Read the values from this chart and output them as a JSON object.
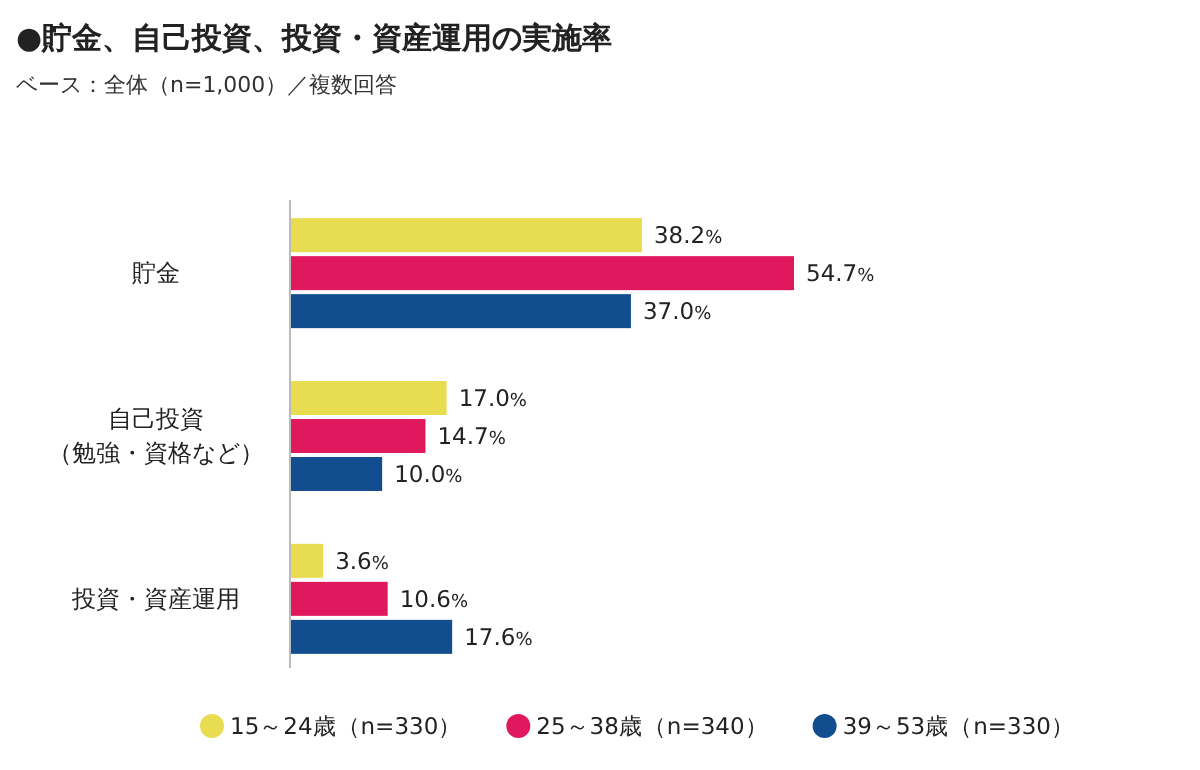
{
  "chart_data": {
    "type": "bar",
    "orientation": "horizontal",
    "title": "●貯金、自己投資、投資・資産運用の実施率",
    "subtitle": "ベース：全体（n=1,000）／複数回答",
    "categories": [
      "貯金",
      "自己投資（勉強・資格など）",
      "投資・資産運用"
    ],
    "series": [
      {
        "name": "15～24歳（n=330）",
        "color": "#e8dc50",
        "values": [
          38.2,
          17.0,
          3.6
        ],
        "value_labels": [
          "38.2%",
          "17.0%",
          "3.6%"
        ]
      },
      {
        "name": "25～38歳（n=340）",
        "color": "#e0195f",
        "values": [
          54.7,
          14.7,
          10.6
        ],
        "value_labels": [
          "54.7%",
          "14.7%",
          "10.6%"
        ]
      },
      {
        "name": "39～53歳（n=330）",
        "color": "#114d8f",
        "values": [
          37.0,
          10.0,
          17.6
        ],
        "value_labels": [
          "37.0%",
          "10.0%",
          "17.6%"
        ]
      }
    ],
    "legend": "bottom"
  }
}
